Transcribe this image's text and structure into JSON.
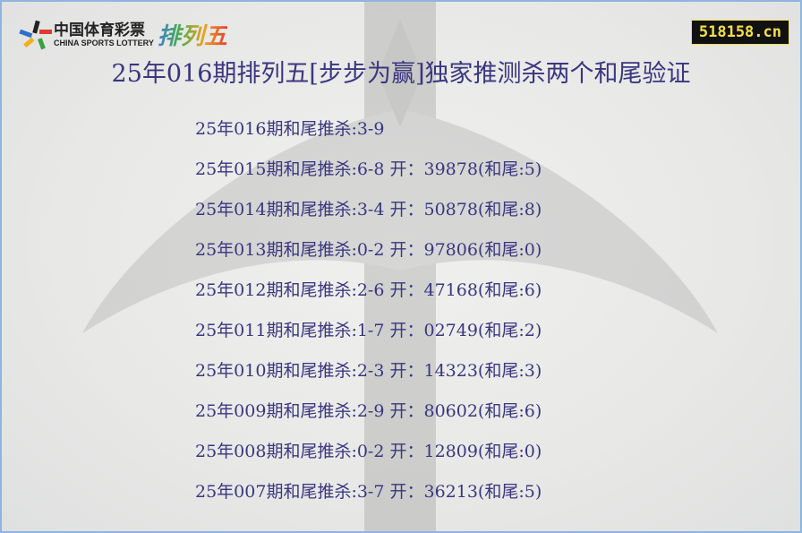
{
  "logo": {
    "cn": "中国体育彩票",
    "en": "CHINA SPORTS LOTTERY",
    "game": "排列五"
  },
  "site": "518158.cn",
  "title": "25年016期排列五[步步为赢]独家推测杀两个和尾验证",
  "rows": [
    "25年016期和尾推杀:3-9",
    "25年015期和尾推杀:6-8 开：39878(和尾:5)",
    "25年014期和尾推杀:3-4 开：50878(和尾:8)",
    "25年013期和尾推杀:0-2 开：97806(和尾:0)",
    "25年012期和尾推杀:2-6 开：47168(和尾:6)",
    "25年011期和尾推杀:1-7 开：02749(和尾:2)",
    "25年010期和尾推杀:2-3 开：14323(和尾:3)",
    "25年009期和尾推杀:2-9 开：80602(和尾:6)",
    "25年008期和尾推杀:0-2 开：12809(和尾:0)",
    "25年007期和尾推杀:3-7 开：36213(和尾:5)"
  ],
  "colors": {
    "text": "#3a3680",
    "border": "#8fb4e0",
    "site_bg": "#111111",
    "site_text": "#f5e04a"
  }
}
